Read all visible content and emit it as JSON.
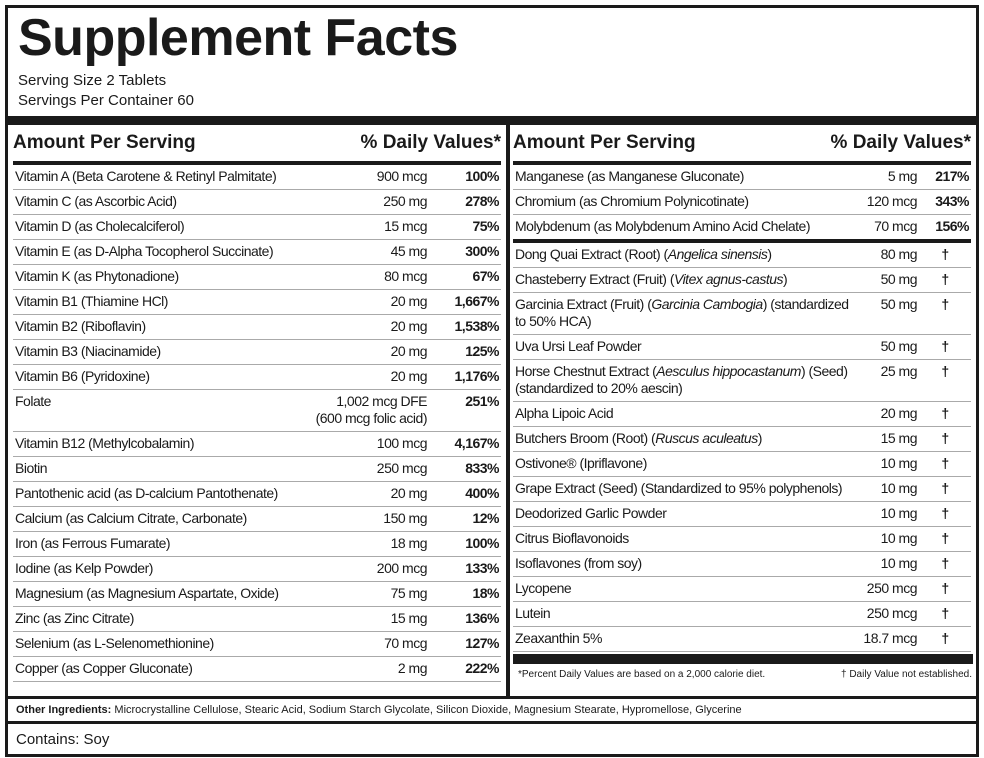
{
  "title": "Supplement Facts",
  "serving_size": "Serving Size 2 Tablets",
  "servings_per_container": "Servings Per Container 60",
  "header": {
    "amount": "Amount Per Serving",
    "dv": "% Daily Values*"
  },
  "left_rows": [
    {
      "name": "Vitamin A (Beta Carotene & Retinyl Palmitate)",
      "amount": "900 mcg",
      "dv": "100%"
    },
    {
      "name": "Vitamin C (as Ascorbic Acid)",
      "amount": "250 mg",
      "dv": "278%"
    },
    {
      "name": "Vitamin D (as Cholecalciferol)",
      "amount": "15 mcg",
      "dv": "75%"
    },
    {
      "name": "Vitamin E (as D-Alpha Tocopherol Succinate)",
      "amount": "45 mg",
      "dv": "300%"
    },
    {
      "name": "Vitamin K (as Phytonadione)",
      "amount": "80 mcg",
      "dv": "67%"
    },
    {
      "name": "Vitamin B1 (Thiamine HCl)",
      "amount": "20 mg",
      "dv": "1,667%"
    },
    {
      "name": "Vitamin B2 (Riboflavin)",
      "amount": "20 mg",
      "dv": "1,538%"
    },
    {
      "name": "Vitamin B3 (Niacinamide)",
      "amount": "20 mg",
      "dv": "125%"
    },
    {
      "name": "Vitamin B6 (Pyridoxine)",
      "amount": "20 mg",
      "dv": "1,176%"
    },
    {
      "name": "Folate",
      "amount": "1,002 mcg DFE",
      "amount2": "(600 mcg folic acid)",
      "dv": "251%"
    },
    {
      "name": "Vitamin B12 (Methylcobalamin)",
      "amount": "100 mcg",
      "dv": "4,167%"
    },
    {
      "name": "Biotin",
      "amount": "250 mcg",
      "dv": "833%"
    },
    {
      "name": "Pantothenic acid (as D-calcium Pantothenate)",
      "amount": "20 mg",
      "dv": "400%"
    },
    {
      "name": "Calcium (as Calcium Citrate, Carbonate)",
      "amount": "150 mg",
      "dv": "12%"
    },
    {
      "name": "Iron (as Ferrous Fumarate)",
      "amount": "18 mg",
      "dv": "100%"
    },
    {
      "name": "Iodine (as Kelp Powder)",
      "amount": "200 mcg",
      "dv": "133%"
    },
    {
      "name": "Magnesium (as Magnesium Aspartate, Oxide)",
      "amount": "75 mg",
      "dv": "18%"
    },
    {
      "name": "Zinc (as Zinc Citrate)",
      "amount": "15 mg",
      "dv": "136%"
    },
    {
      "name": "Selenium (as L-Selenomethionine)",
      "amount": "70 mcg",
      "dv": "127%"
    },
    {
      "name": "Copper (as Copper Gluconate)",
      "amount": "2 mg",
      "dv": "222%"
    }
  ],
  "right_rows": [
    {
      "name": "Manganese (as Manganese Gluconate)",
      "amount": "5 mg",
      "dv": "217%"
    },
    {
      "name": "Chromium (as Chromium Polynicotinate)",
      "amount": "120 mcg",
      "dv": "343%"
    },
    {
      "name": "Molybdenum (as Molybdenum Amino Acid Chelate)",
      "amount": "70 mcg",
      "dv": "156%"
    },
    {
      "name": "Dong Quai Extract (Root) (",
      "italic": "Angelica sinensis",
      "post": ")",
      "amount": "80 mg",
      "dv": "†"
    },
    {
      "name": "Chasteberry Extract (Fruit) (",
      "italic": "Vitex agnus-castus",
      "post": ")",
      "amount": "50 mg",
      "dv": "†"
    },
    {
      "name": "Garcinia Extract (Fruit) (",
      "italic": "Garcinia Cambogia",
      "post": ") (standardized to 50% HCA)",
      "amount": "50 mg",
      "dv": "†"
    },
    {
      "name": "Uva Ursi Leaf Powder",
      "amount": "50 mg",
      "dv": "†"
    },
    {
      "name": "Horse Chestnut Extract (",
      "italic": "Aesculus hippocastanum",
      "post": ") (Seed) (standardized to 20% aescin)",
      "amount": "25 mg",
      "dv": "†"
    },
    {
      "name": "Alpha Lipoic Acid",
      "amount": "20 mg",
      "dv": "†"
    },
    {
      "name": "Butchers Broom (Root) (",
      "italic": "Ruscus aculeatus",
      "post": ")",
      "amount": "15 mg",
      "dv": "†"
    },
    {
      "name": "Ostivone® (Ipriflavone)",
      "amount": "10 mg",
      "dv": "†"
    },
    {
      "name": "Grape Extract (Seed) (Standardized to 95% polyphenols)",
      "amount": "10 mg",
      "dv": "†"
    },
    {
      "name": "Deodorized Garlic Powder",
      "amount": "10 mg",
      "dv": "†"
    },
    {
      "name": "Citrus Bioflavonoids",
      "amount": "10 mg",
      "dv": "†"
    },
    {
      "name": "Isoflavones (from soy)",
      "amount": "10 mg",
      "dv": "†"
    },
    {
      "name": "Lycopene",
      "amount": "250 mcg",
      "dv": "†"
    },
    {
      "name": "Lutein",
      "amount": "250 mcg",
      "dv": "†"
    },
    {
      "name": "Zeaxanthin 5%",
      "amount": "18.7 mcg",
      "dv": "†"
    }
  ],
  "footnote_dv": "*Percent Daily Values are based on a 2,000 calorie diet.",
  "footnote_dagger": "† Daily Value not established.",
  "other_ingredients": {
    "label": "Other Ingredients:",
    "text": " Microcrystalline Cellulose, Stearic Acid, Sodium Starch Glycolate, Silicon Dioxide, Magnesium Stearate, Hypromellose, Glycerine"
  },
  "contains": "Contains: Soy"
}
